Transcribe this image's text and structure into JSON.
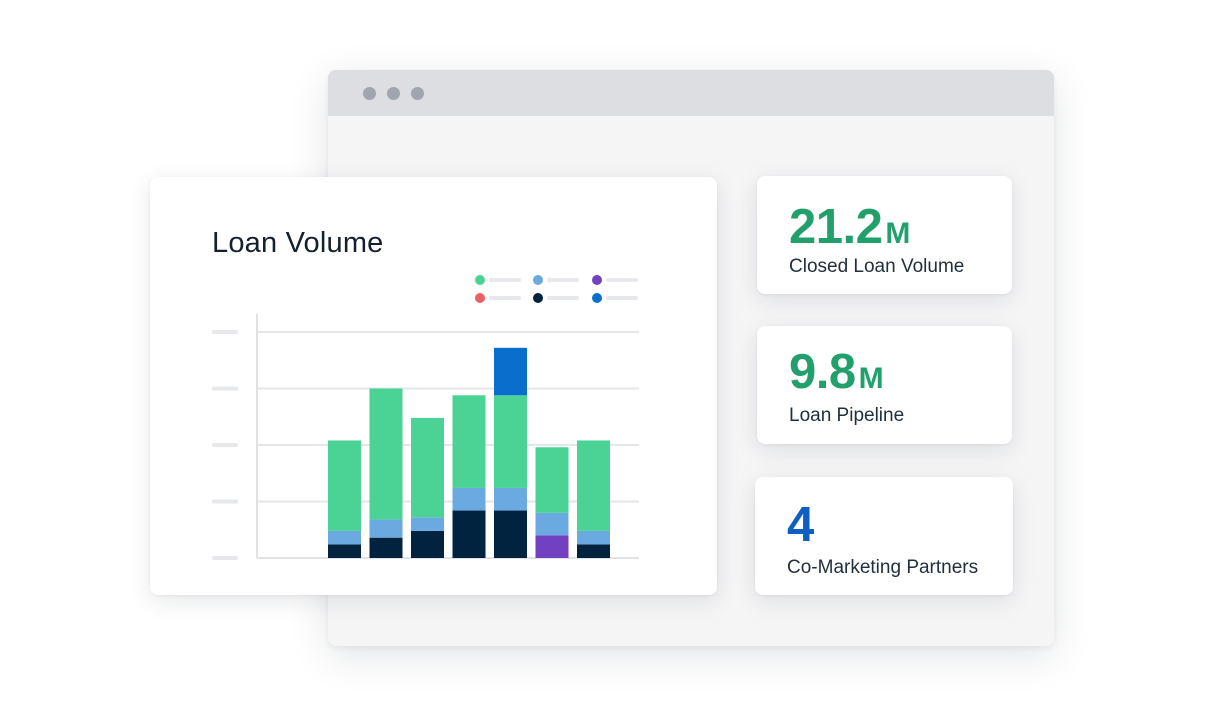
{
  "colors": {
    "green": "#4bd395",
    "light_blue": "#6aaae0",
    "navy": "#02233f",
    "purple": "#7141c2",
    "blue": "#0a6fcc",
    "red": "#ef6066",
    "stat_green": "#22a06b",
    "stat_blue": "#0f5fc2"
  },
  "loan_volume": {
    "title": "Loan Volume",
    "legend": [
      {
        "color": "green",
        "icon": "legend-dot"
      },
      {
        "color": "light_blue",
        "icon": "legend-dot"
      },
      {
        "color": "purple",
        "icon": "legend-dot"
      },
      {
        "color": "red",
        "icon": "legend-dot"
      },
      {
        "color": "navy",
        "icon": "legend-dot"
      },
      {
        "color": "blue",
        "icon": "legend-dot"
      }
    ]
  },
  "chart_data": {
    "type": "bar",
    "stacked": true,
    "title": "Loan Volume",
    "categories": [
      "",
      "",
      "",
      "",
      "",
      "",
      ""
    ],
    "ylim": [
      0,
      100
    ],
    "grid": true,
    "legend_position": "top-right",
    "series": [
      {
        "color": "navy",
        "values": [
          6,
          9,
          12,
          21,
          21,
          0,
          6
        ]
      },
      {
        "color": "purple",
        "values": [
          0,
          0,
          0,
          0,
          0,
          10,
          0
        ]
      },
      {
        "color": "light_blue",
        "values": [
          6,
          8,
          6,
          10,
          10,
          10,
          6
        ]
      },
      {
        "color": "green",
        "values": [
          40,
          58,
          44,
          41,
          41,
          29,
          40
        ]
      },
      {
        "color": "blue",
        "values": [
          0,
          0,
          0,
          0,
          21,
          0,
          0
        ]
      }
    ]
  },
  "stats": [
    {
      "value": "21.2",
      "unit": "M",
      "label": "Closed Loan Volume",
      "color": "stat_green"
    },
    {
      "value": "9.8",
      "unit": "M",
      "label": "Loan Pipeline",
      "color": "stat_green"
    },
    {
      "value": "4",
      "unit": "",
      "label": "Co-Marketing Partners",
      "color": "stat_blue"
    }
  ]
}
